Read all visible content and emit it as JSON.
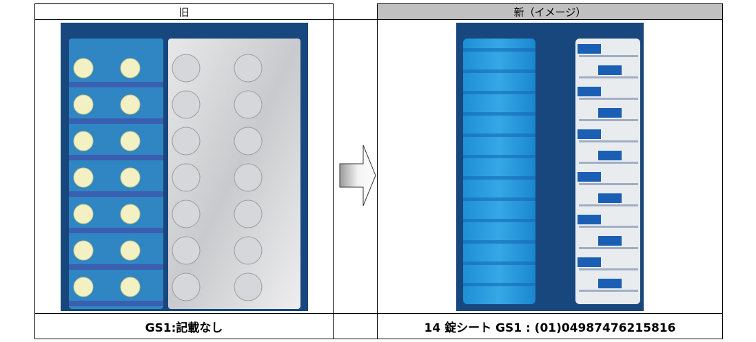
{
  "header": {
    "old": "旧",
    "new": "新（イメージ）"
  },
  "footer": {
    "old": "GS1:記載なし",
    "new": "14 錠シート GS1 : (01)04987476215816"
  }
}
